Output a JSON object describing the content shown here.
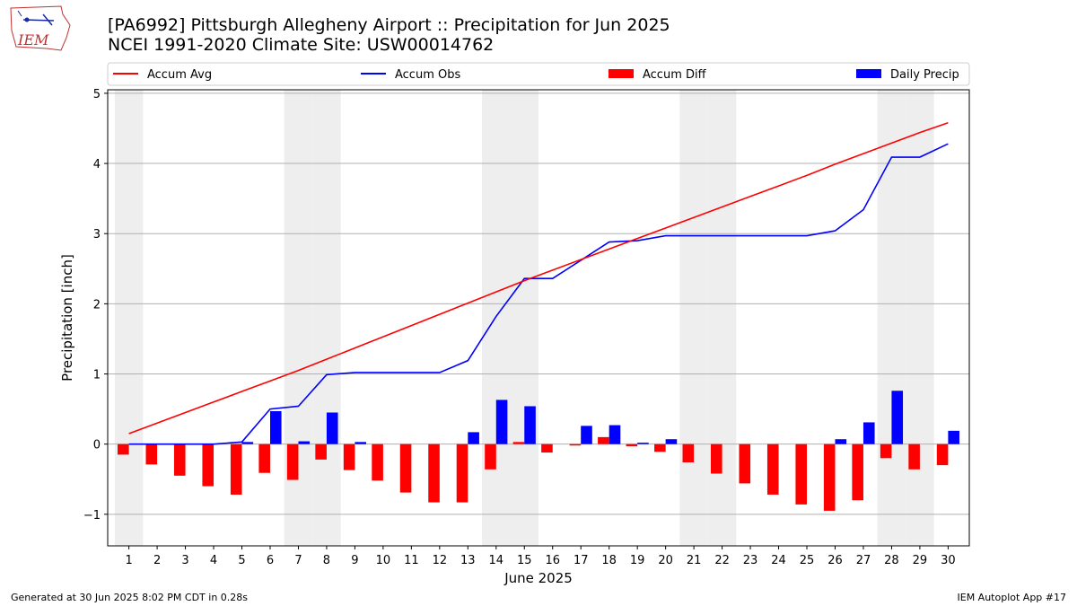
{
  "header": {
    "title_line1": "[PA6992] Pittsburgh Allegheny Airport :: Precipitation for Jun 2025",
    "title_line2": "NCEI 1991-2020 Climate Site: USW00014762",
    "logo_text": "IEM"
  },
  "footer": {
    "generated": "Generated at 30 Jun 2025 8:02 PM CDT in 0.28s",
    "app": "IEM Autoplot App #17"
  },
  "chart_data": {
    "type": "bar",
    "title": "[PA6992] Pittsburgh Allegheny Airport :: Precipitation for Jun 2025",
    "subtitle": "NCEI 1991-2020 Climate Site: USW00014762",
    "xlabel": "June 2025",
    "ylabel": "Precipitation [inch]",
    "ylim": [
      -1.45,
      5.05
    ],
    "yticks": [
      -1,
      0,
      1,
      2,
      3,
      4,
      5
    ],
    "ytick_labels": [
      "−1",
      "0",
      "1",
      "2",
      "3",
      "4",
      "5"
    ],
    "grid": "horizontal",
    "legend_placement": "top",
    "weekend_shading_days": [
      1,
      7,
      8,
      14,
      15,
      21,
      22,
      28,
      29
    ],
    "shade_color": "#eeeeee",
    "days": [
      1,
      2,
      3,
      4,
      5,
      6,
      7,
      8,
      9,
      10,
      11,
      12,
      13,
      14,
      15,
      16,
      17,
      18,
      19,
      20,
      21,
      22,
      23,
      24,
      25,
      26,
      27,
      28,
      29,
      30
    ],
    "series": [
      {
        "name": "Accum Avg",
        "kind": "line",
        "color": "#ff0000",
        "values": [
          0.15,
          0.3,
          0.45,
          0.6,
          0.75,
          0.9,
          1.05,
          1.21,
          1.37,
          1.53,
          1.69,
          1.85,
          2.01,
          2.17,
          2.33,
          2.48,
          2.63,
          2.78,
          2.93,
          3.08,
          3.23,
          3.38,
          3.53,
          3.68,
          3.83,
          3.99,
          4.14,
          4.29,
          4.44,
          4.58
        ]
      },
      {
        "name": "Accum Obs",
        "kind": "line",
        "color": "#0000ff",
        "values": [
          0.0,
          0.0,
          0.0,
          0.0,
          0.03,
          0.5,
          0.54,
          0.99,
          1.02,
          1.02,
          1.02,
          1.02,
          1.19,
          1.82,
          2.36,
          2.36,
          2.62,
          2.88,
          2.9,
          2.97,
          2.97,
          2.97,
          2.97,
          2.97,
          2.97,
          3.04,
          3.34,
          4.09,
          4.09,
          4.28
        ]
      },
      {
        "name": "Accum Diff",
        "kind": "bar",
        "color": "#ff0000",
        "values": [
          -0.15,
          -0.29,
          -0.45,
          -0.6,
          -0.72,
          -0.41,
          -0.51,
          -0.22,
          -0.37,
          -0.52,
          -0.69,
          -0.83,
          -0.83,
          -0.36,
          0.03,
          -0.12,
          -0.02,
          0.1,
          -0.03,
          -0.11,
          -0.26,
          -0.42,
          -0.56,
          -0.72,
          -0.86,
          -0.95,
          -0.8,
          -0.2,
          -0.36,
          -0.3
        ]
      },
      {
        "name": "Daily Precip",
        "kind": "bar",
        "color": "#0000ff",
        "values": [
          0.0,
          0.0,
          0.0,
          0.0,
          0.03,
          0.47,
          0.04,
          0.45,
          0.03,
          0.0,
          0.0,
          0.0,
          0.17,
          0.63,
          0.54,
          0.0,
          0.26,
          0.27,
          0.02,
          0.07,
          0.0,
          0.0,
          0.0,
          0.0,
          0.0,
          0.07,
          0.31,
          0.76,
          0.0,
          0.19
        ]
      }
    ]
  }
}
